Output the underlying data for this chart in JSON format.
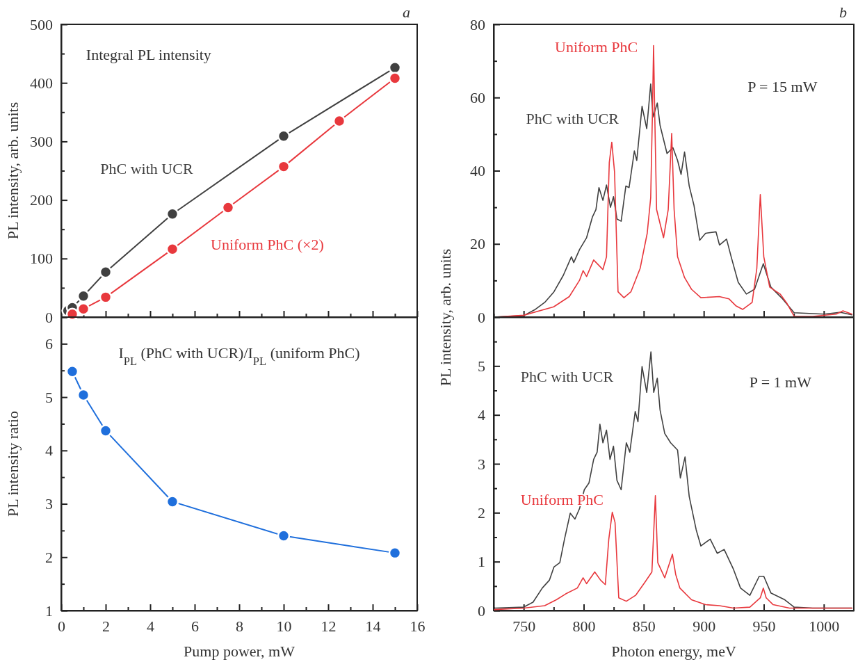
{
  "chart_data": [
    {
      "type": "line",
      "title": "a",
      "ylabel": "PL intensity, arb. units",
      "marker": "circle",
      "tick_labels": "y",
      "annotations": [
        "Integral PL intensity"
      ],
      "xlim": [
        0,
        16
      ],
      "xticks": [
        0,
        {
          "value": 1,
          "label": null
        },
        2,
        {
          "value": 3,
          "label": null
        },
        4,
        {
          "value": 5,
          "label": null
        },
        6,
        {
          "value": 7,
          "label": null
        },
        8,
        {
          "value": 9,
          "label": null
        },
        10,
        {
          "value": 11,
          "label": null
        },
        12,
        {
          "value": 13,
          "label": null
        },
        14,
        {
          "value": 15,
          "label": null
        },
        16
      ],
      "ylim": [
        0,
        500
      ],
      "yticks": [
        0,
        {
          "value": 50,
          "label": null
        },
        100,
        {
          "value": 150,
          "label": null
        },
        200,
        {
          "value": 250,
          "label": null
        },
        300,
        {
          "value": 350,
          "label": null
        },
        400,
        {
          "value": 450,
          "label": null
        },
        500
      ],
      "series": [
        {
          "name": "PhC with UCR",
          "color": "#404040",
          "x": [
            0.3,
            0.5,
            1,
            2,
            5,
            10,
            15
          ],
          "values": [
            11,
            16,
            36,
            77,
            176,
            309,
            426
          ]
        },
        {
          "name": "Uniform PhC (×2)",
          "color": "#e8383d",
          "x": [
            0.5,
            1,
            2,
            5,
            7.5,
            10,
            12.5,
            15
          ],
          "values": [
            5,
            14,
            34,
            116,
            187,
            257,
            335,
            408
          ]
        }
      ]
    },
    {
      "type": "line",
      "xlabel": "Pump power, mW",
      "ylabel": "PL intensity ratio",
      "marker": "circle",
      "annotations": [
        "I$_{PL}$ (PhC with UCR)/I$_{PL}$ (uniform PhC)"
      ],
      "xlim": [
        0,
        16
      ],
      "xticks": [
        0,
        {
          "value": 1,
          "label": null
        },
        2,
        {
          "value": 3,
          "label": null
        },
        4,
        {
          "value": 5,
          "label": null
        },
        6,
        {
          "value": 7,
          "label": null
        },
        8,
        {
          "value": 9,
          "label": null
        },
        10,
        {
          "value": 11,
          "label": null
        },
        12,
        {
          "value": 13,
          "label": null
        },
        14,
        {
          "value": 15,
          "label": null
        },
        16
      ],
      "ylim": [
        1,
        6.5
      ],
      "yticks": [
        1,
        {
          "value": 1.5,
          "label": null
        },
        2,
        {
          "value": 2.5,
          "label": null
        },
        3,
        {
          "value": 3.5,
          "label": null
        },
        4,
        {
          "value": 4.5,
          "label": null
        },
        5,
        {
          "value": 5.5,
          "label": null
        },
        6
      ],
      "series": [
        {
          "color": "#1f6fdc",
          "x": [
            0.5,
            1,
            2,
            5,
            10,
            15
          ],
          "values": [
            5.48,
            5.04,
            4.37,
            3.04,
            2.4,
            2.08
          ]
        }
      ]
    },
    {
      "type": "line",
      "title": "b",
      "ylabel": "PL intensity, arb. units",
      "tick_labels": "y",
      "annotations": [
        "P = 15 mW"
      ],
      "xlim": [
        725,
        1025
      ],
      "xticks": [
        {
          "value": 725,
          "label": null
        },
        750,
        {
          "value": 775,
          "label": null
        },
        800,
        {
          "value": 825,
          "label": null
        },
        850,
        {
          "value": 875,
          "label": null
        },
        900,
        {
          "value": 925,
          "label": null
        },
        950,
        {
          "value": 975,
          "label": null
        },
        1000
      ],
      "ylim": [
        0,
        80
      ],
      "yticks": [
        0,
        {
          "value": 10,
          "label": null
        },
        20,
        {
          "value": 30,
          "label": null
        },
        40,
        {
          "value": 50,
          "label": null
        },
        60,
        {
          "value": 70,
          "label": null
        },
        80
      ],
      "series": [
        {
          "name": "PhC with UCR",
          "color": "#404040",
          "x": [
            725.7,
            750,
            759.7,
            767.5,
            775.2,
            783,
            789.8,
            791.7,
            796.6,
            802.4,
            807.3,
            810.2,
            812.7,
            816,
            819,
            822.3,
            824.8,
            827.7,
            831.2,
            835.1,
            837.8,
            842.2,
            844.2,
            848.6,
            852.5,
            855.8,
            857.8,
            861.3,
            863.6,
            869.4,
            874.3,
            878.2,
            881.1,
            884,
            887.9,
            891.8,
            896.6,
            901.5,
            910.2,
            913.1,
            919,
            922.8,
            928.7,
            935.5,
            942.3,
            949.6,
            955.9,
            965.6,
            975.3,
            1000.5,
            1014.1,
            1023.4
          ],
          "values": [
            0,
            0.4,
            2.1,
            4,
            6.9,
            11.4,
            16.5,
            14.9,
            18.5,
            21.7,
            27.4,
            29.4,
            35.4,
            31.9,
            36.1,
            30,
            32.9,
            26.8,
            26.2,
            35.8,
            35.4,
            45.4,
            42.8,
            57.6,
            51.5,
            63.7,
            54.7,
            58.5,
            52.4,
            44.7,
            46.3,
            42.8,
            39,
            45.1,
            35.8,
            30.6,
            21,
            22.9,
            23.3,
            19.7,
            21.3,
            16.5,
            9.5,
            6.3,
            7.6,
            14.6,
            8.2,
            5,
            1.2,
            0.8,
            1.3,
            0.6
          ]
        },
        {
          "name": "Uniform PhC",
          "color": "#e8383d",
          "x": [
            725.7,
            750,
            775,
            788,
            796.6,
            799.5,
            802.4,
            808.3,
            816,
            819,
            821.3,
            823.4,
            825.7,
            828.6,
            833.5,
            839.3,
            847,
            852.9,
            855.8,
            857.2,
            858.2,
            859.2,
            860.7,
            866.5,
            870.4,
            873.3,
            875.3,
            878.2,
            884,
            889.8,
            897.6,
            913,
            920.9,
            926.7,
            932.5,
            940.3,
            944.2,
            947.1,
            950,
            954.9,
            963.6,
            969.4,
            975.3,
            990.8,
            1010.2,
            1016,
            1023.4
          ],
          "values": [
            0,
            0.5,
            2.8,
            5.6,
            10.1,
            12.7,
            11.1,
            15.6,
            13,
            16.5,
            42.2,
            47.8,
            39.6,
            6.9,
            5.3,
            6.9,
            13.3,
            22.9,
            32.6,
            55,
            74.2,
            55,
            29.4,
            21.7,
            29.4,
            50.2,
            29.4,
            16.5,
            10.8,
            7.6,
            5.3,
            5.6,
            5,
            3.1,
            2.1,
            4,
            13.3,
            33.5,
            16.5,
            8.2,
            6.3,
            3.7,
            0.2,
            0.2,
            0.8,
            1.7,
            0.8
          ]
        }
      ]
    },
    {
      "type": "line",
      "xlabel": "Photon energy, meV",
      "annotations": [
        "P = 1 mW"
      ],
      "xlim": [
        725,
        1025
      ],
      "xticks": [
        {
          "value": 725,
          "label": null
        },
        750,
        {
          "value": 775,
          "label": null
        },
        800,
        {
          "value": 825,
          "label": null
        },
        850,
        {
          "value": 875,
          "label": null
        },
        900,
        {
          "value": 925,
          "label": null
        },
        950,
        {
          "value": 975,
          "label": null
        },
        1000
      ],
      "ylim": [
        0,
        6
      ],
      "yticks": [
        0,
        {
          "value": 0.5,
          "label": null
        },
        1,
        {
          "value": 1.5,
          "label": null
        },
        2,
        {
          "value": 2.5,
          "label": null
        },
        3,
        {
          "value": 3.5,
          "label": null
        },
        4,
        {
          "value": 4.5,
          "label": null
        },
        5,
        {
          "value": 5.5,
          "label": null
        }
      ],
      "series": [
        {
          "name": "PhC with UCR",
          "color": "#404040",
          "x": [
            725.7,
            750,
            757.8,
            765.5,
            771.4,
            775.2,
            780.1,
            784,
            788.8,
            792.7,
            796.6,
            800.5,
            804.4,
            808.3,
            811.2,
            813.5,
            816,
            819,
            821.9,
            824.8,
            827.7,
            831.2,
            835.5,
            838.4,
            842.9,
            845.2,
            848.6,
            852.5,
            856,
            858.3,
            861.3,
            863.6,
            867.5,
            872.4,
            878.2,
            880.5,
            884.4,
            887.9,
            893.7,
            897.6,
            905.4,
            911.2,
            917,
            924.8,
            930.6,
            938.4,
            946.2,
            950,
            955.9,
            967.5,
            975.3,
            990.8,
            1023.4
          ],
          "values": [
            0.05,
            0.07,
            0.17,
            0.46,
            0.62,
            0.89,
            0.98,
            1.46,
            1.99,
            1.87,
            2.09,
            2.47,
            2.61,
            3.09,
            3.24,
            3.81,
            3.43,
            3.69,
            3.09,
            3.36,
            2.66,
            2.47,
            3.43,
            3.24,
            4.07,
            3.86,
            4.99,
            4.46,
            5.29,
            4.46,
            4.75,
            4.1,
            3.62,
            3.43,
            3.28,
            2.71,
            3.14,
            2.33,
            1.65,
            1.32,
            1.46,
            1.17,
            1.25,
            0.84,
            0.46,
            0.31,
            0.7,
            0.7,
            0.36,
            0.22,
            0.07,
            0.05,
            0.05
          ]
        },
        {
          "name": "Uniform PhC",
          "color": "#e8383d",
          "x": [
            725.7,
            750,
            767.5,
            777.2,
            785,
            794.7,
            799.5,
            802.4,
            809.2,
            814.1,
            818,
            820.9,
            823.8,
            826.1,
            829.2,
            835.5,
            843.2,
            851,
            856.8,
            859.7,
            861.7,
            867.5,
            873.9,
            876.6,
            880.1,
            889.8,
            901.5,
            913.1,
            924.8,
            938.4,
            947.1,
            949.6,
            952,
            957.8,
            971.4,
            1023.4
          ],
          "values": [
            0.02,
            0.05,
            0.1,
            0.22,
            0.34,
            0.46,
            0.67,
            0.55,
            0.79,
            0.62,
            0.53,
            1.46,
            2.01,
            1.8,
            0.26,
            0.19,
            0.31,
            0.58,
            0.79,
            2.35,
            0.98,
            0.67,
            1.15,
            0.74,
            0.46,
            0.22,
            0.12,
            0.1,
            0.05,
            0.07,
            0.26,
            0.46,
            0.26,
            0.12,
            0.05,
            0.05
          ]
        }
      ]
    }
  ]
}
